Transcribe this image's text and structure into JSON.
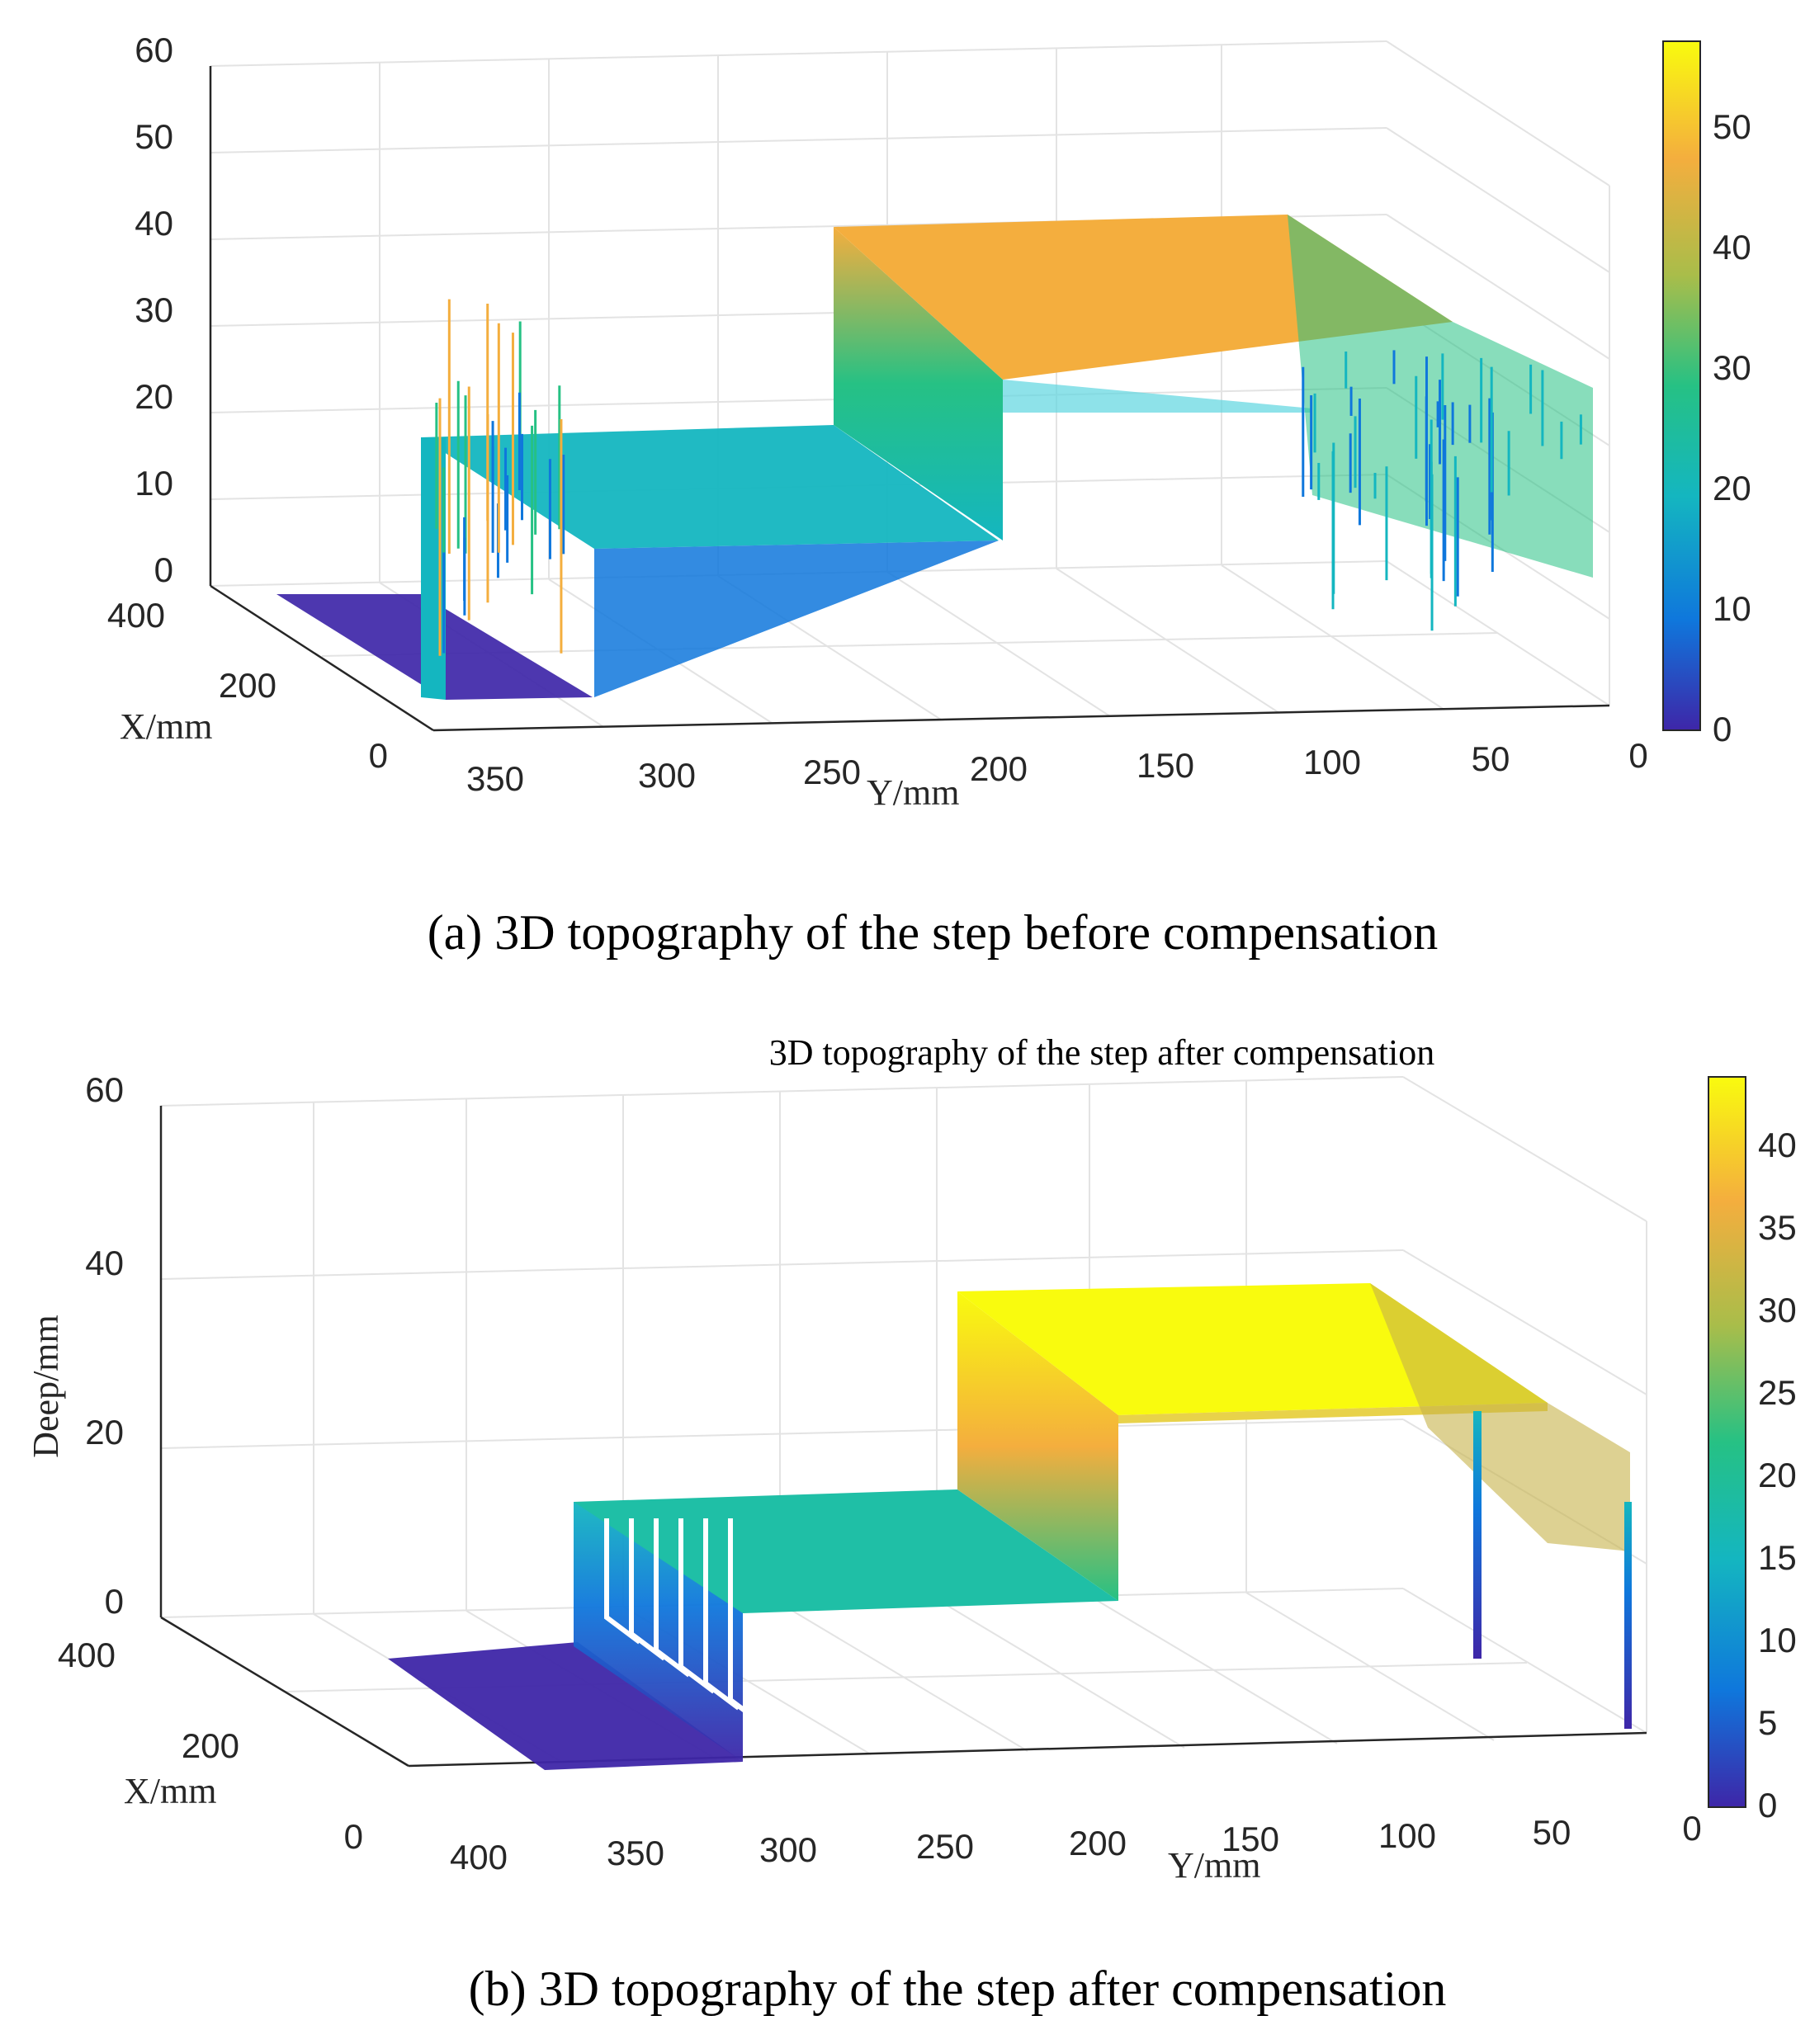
{
  "chart_data": [
    {
      "type": "surface",
      "panel": "a",
      "caption": "(a) 3D topography of the step before compensation",
      "title": "",
      "xlabel": "X/mm",
      "ylabel": "Y/mm",
      "zlabel": "",
      "x_ticks": [
        "0",
        "200",
        "400"
      ],
      "y_ticks": [
        "350",
        "300",
        "250",
        "200",
        "150",
        "100",
        "50",
        "0"
      ],
      "z_ticks": [
        "0",
        "10",
        "20",
        "30",
        "40",
        "50",
        "60"
      ],
      "xlim": [
        0,
        400
      ],
      "ylim": [
        0,
        380
      ],
      "zlim": [
        0,
        60
      ],
      "colorbar_ticks": [
        "0",
        "10",
        "20",
        "30",
        "40",
        "50"
      ],
      "colorbar_range": [
        0,
        57
      ],
      "colormap": [
        "#3e26a8",
        "#0f77dc",
        "#14b6c0",
        "#26c184",
        "#a9bd4a",
        "#f4ae3e",
        "#f9fb0e"
      ],
      "grid": true,
      "steps": [
        {
          "y_from": 380,
          "y_to": 285,
          "z": 0
        },
        {
          "y_from": 285,
          "y_to": 170,
          "z": 17
        },
        {
          "y_from": 170,
          "y_to": 0,
          "z": 40
        }
      ],
      "noise_spikes_max": 45
    },
    {
      "type": "surface",
      "panel": "b",
      "caption": "(b) 3D topography of the step after compensation",
      "title": "3D topography of the step after compensation",
      "xlabel": "X/mm",
      "ylabel": "Y/mm",
      "zlabel": "Deep/mm",
      "x_ticks": [
        "0",
        "200",
        "400"
      ],
      "y_ticks": [
        "400",
        "350",
        "300",
        "250",
        "200",
        "150",
        "100",
        "50",
        "0"
      ],
      "z_ticks": [
        "0",
        "20",
        "40",
        "60"
      ],
      "xlim": [
        0,
        400
      ],
      "ylim": [
        0,
        430
      ],
      "zlim": [
        0,
        60
      ],
      "colorbar_ticks": [
        "0",
        "5",
        "10",
        "15",
        "20",
        "25",
        "30",
        "35",
        "40"
      ],
      "colorbar_range": [
        0,
        44
      ],
      "colormap": [
        "#3e26a8",
        "#0f77dc",
        "#14b6c0",
        "#26c184",
        "#a9bd4a",
        "#f4ae3e",
        "#f9fb0e"
      ],
      "grid": true,
      "steps": [
        {
          "y_from": 400,
          "y_to": 320,
          "z": 2
        },
        {
          "y_from": 320,
          "y_to": 205,
          "z": 22
        },
        {
          "y_from": 205,
          "y_to": 0,
          "z": 44
        }
      ]
    }
  ]
}
